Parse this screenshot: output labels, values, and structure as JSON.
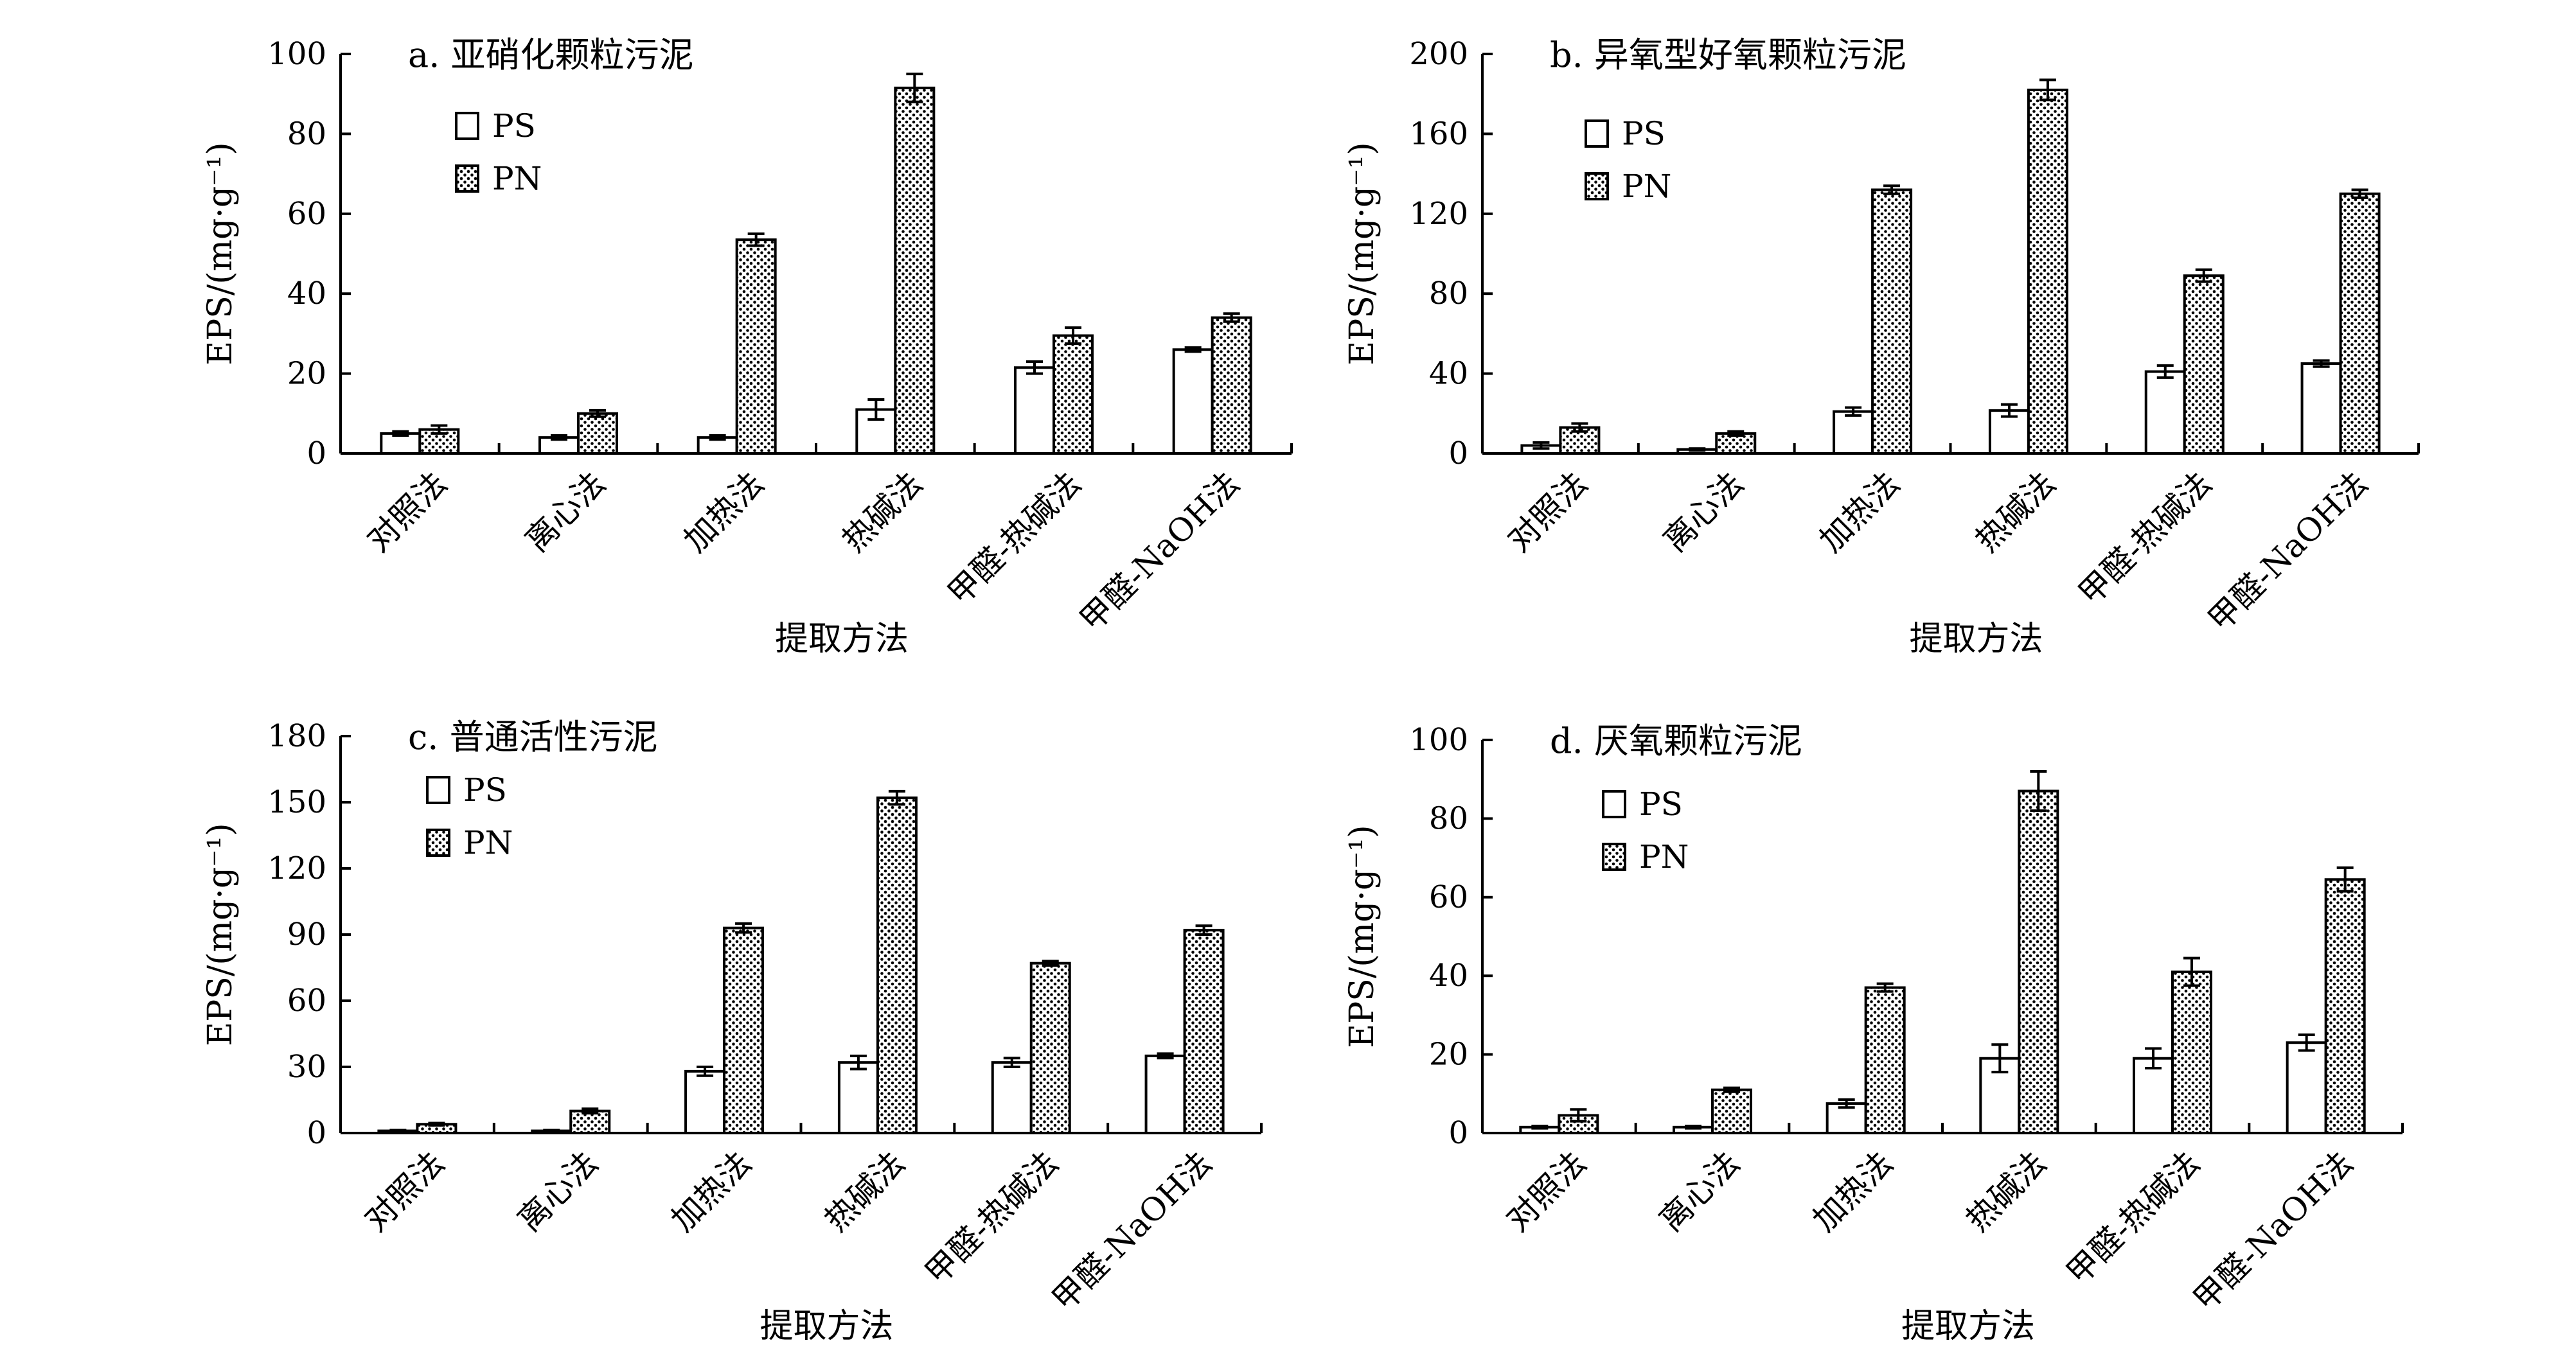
{
  "chart_data": [
    {
      "type": "bar",
      "title": "a. 亚硝化颗粒污泥",
      "xlabel": "提取方法",
      "ylabel": "EPS/(mg·g⁻¹)",
      "ylim": [
        0,
        100
      ],
      "yticks": [
        0,
        20,
        40,
        60,
        80,
        100
      ],
      "categories": [
        "对照法",
        "离心法",
        "加热法",
        "热碱法",
        "甲醛-热碱法",
        "甲醛-NaOH法"
      ],
      "series": [
        {
          "name": "PS",
          "values": [
            5,
            4,
            4,
            11,
            21.5,
            26
          ],
          "errors": [
            0.5,
            0.5,
            0.5,
            2.5,
            1.5,
            0.5
          ]
        },
        {
          "name": "PN",
          "values": [
            6,
            10,
            53.5,
            91.5,
            29.5,
            34
          ],
          "errors": [
            1,
            0.8,
            1.5,
            3.5,
            2,
            1
          ]
        }
      ]
    },
    {
      "type": "bar",
      "title": "b. 异氧型好氧颗粒污泥",
      "xlabel": "提取方法",
      "ylabel": "EPS/(mg·g⁻¹)",
      "ylim": [
        0,
        200
      ],
      "yticks": [
        0,
        40,
        80,
        120,
        160,
        200
      ],
      "categories": [
        "对照法",
        "离心法",
        "加热法",
        "热碱法",
        "甲醛-热碱法",
        "甲醛-NaOH法"
      ],
      "series": [
        {
          "name": "PS",
          "values": [
            4,
            2,
            21,
            21.5,
            41,
            45
          ],
          "errors": [
            1.5,
            0.5,
            2,
            3,
            3,
            1.5
          ]
        },
        {
          "name": "PN",
          "values": [
            13,
            10,
            132,
            182,
            89,
            130
          ],
          "errors": [
            2,
            1,
            2,
            5,
            3,
            2
          ]
        }
      ]
    },
    {
      "type": "bar",
      "title": "c. 普通活性污泥",
      "xlabel": "提取方法",
      "ylabel": "EPS/(mg·g⁻¹)",
      "ylim": [
        0,
        180
      ],
      "yticks": [
        0,
        30,
        60,
        90,
        120,
        150,
        180
      ],
      "categories": [
        "对照法",
        "离心法",
        "加热法",
        "热碱法",
        "甲醛-热碱法",
        "甲醛-NaOH法"
      ],
      "series": [
        {
          "name": "PS",
          "values": [
            1,
            1,
            28,
            32,
            32,
            35
          ],
          "errors": [
            0.3,
            0.3,
            2,
            3,
            2,
            1
          ]
        },
        {
          "name": "PN",
          "values": [
            4,
            10,
            93,
            152,
            77,
            92
          ],
          "errors": [
            0.5,
            1,
            2,
            3,
            1,
            2
          ]
        }
      ]
    },
    {
      "type": "bar",
      "title": "d. 厌氧颗粒污泥",
      "xlabel": "提取方法",
      "ylabel": "EPS/(mg·g⁻¹)",
      "ylim": [
        0,
        100
      ],
      "yticks": [
        0,
        20,
        40,
        60,
        80,
        100
      ],
      "categories": [
        "对照法",
        "离心法",
        "加热法",
        "热碱法",
        "甲醛-热碱法",
        "甲醛-NaOH法"
      ],
      "series": [
        {
          "name": "PS",
          "values": [
            1.5,
            1.5,
            7.5,
            19,
            19,
            23
          ],
          "errors": [
            0.3,
            0.3,
            1,
            3.5,
            2.5,
            2
          ]
        },
        {
          "name": "PN",
          "values": [
            4.5,
            11,
            37,
            87,
            41,
            64.5
          ],
          "errors": [
            1.5,
            0.5,
            1,
            5,
            3.5,
            3
          ]
        }
      ]
    }
  ]
}
